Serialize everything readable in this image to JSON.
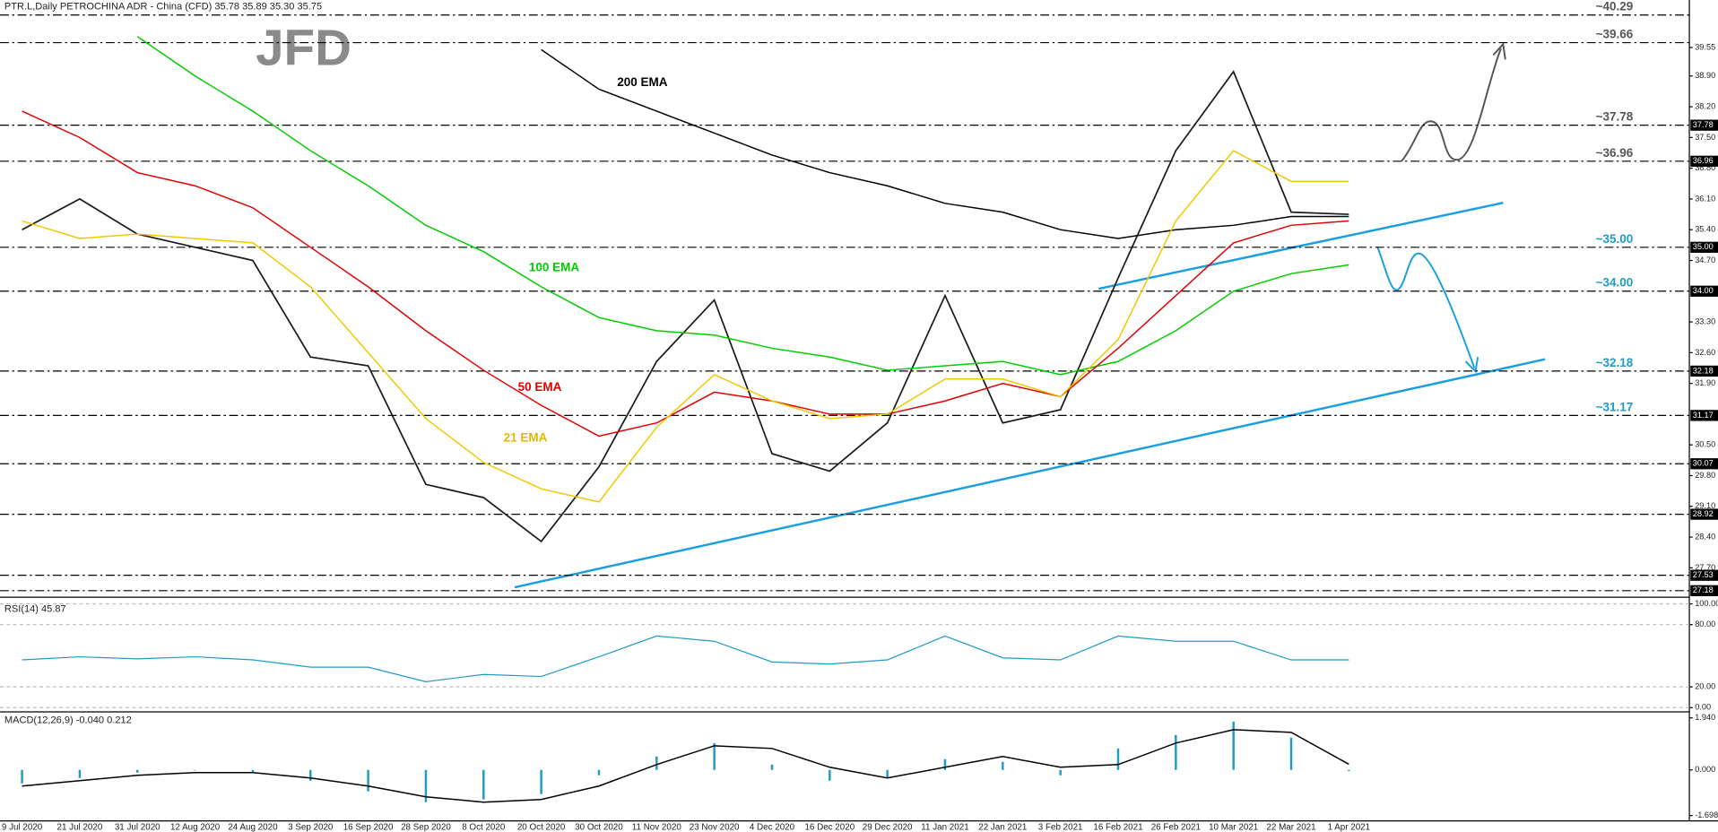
{
  "chart_data": [
    {
      "type": "line",
      "title": "PTR.L,Daily  PETROCHINA ADR - China (CFD)  35.78 35.89 35.30 35.75",
      "logo": "JFD",
      "categories": [
        "9 Jul 2020",
        "21 Jul 2020",
        "31 Jul 2020",
        "12 Aug 2020",
        "24 Aug 2020",
        "3 Sep 2020",
        "16 Sep 2020",
        "28 Sep 2020",
        "8 Oct 2020",
        "20 Oct 2020",
        "30 Oct 2020",
        "11 Nov 2020",
        "23 Nov 2020",
        "4 Dec 2020",
        "16 Dec 2020",
        "29 Dec 2020",
        "11 Jan 2021",
        "22 Jan 2021",
        "3 Feb 2021",
        "16 Feb 2021",
        "26 Feb 2021",
        "10 Mar 2021",
        "22 Mar 2021",
        "1 Apr 2021"
      ],
      "close": {
        "color": "#1a1a1a",
        "values": [
          35.4,
          36.1,
          35.3,
          35.0,
          34.7,
          32.5,
          32.3,
          29.6,
          29.3,
          28.3,
          30.0,
          32.4,
          33.8,
          30.3,
          29.9,
          31.0,
          33.9,
          31.0,
          31.3,
          34.3,
          37.2,
          39.0,
          35.8,
          35.75
        ]
      },
      "series": [
        {
          "name": "200 EMA",
          "color": "#000000",
          "values": [
            null,
            null,
            null,
            null,
            null,
            null,
            null,
            null,
            null,
            39.5,
            38.6,
            38.1,
            37.6,
            37.1,
            36.7,
            36.4,
            36.0,
            35.8,
            35.4,
            35.2,
            35.4,
            35.5,
            35.7,
            35.7
          ]
        },
        {
          "name": "100 EMA",
          "color": "#00cc00",
          "values": [
            null,
            null,
            39.8,
            38.9,
            38.1,
            37.2,
            36.4,
            35.5,
            34.9,
            34.1,
            33.4,
            33.1,
            33.0,
            32.7,
            32.5,
            32.2,
            32.3,
            32.4,
            32.1,
            32.4,
            33.1,
            34.0,
            34.4,
            34.6
          ]
        },
        {
          "name": "50 EMA",
          "color": "#e00000",
          "values": [
            38.1,
            37.5,
            36.7,
            36.4,
            35.9,
            35.0,
            34.1,
            33.1,
            32.2,
            31.4,
            30.7,
            31.0,
            31.7,
            31.5,
            31.2,
            31.2,
            31.5,
            31.9,
            31.6,
            32.7,
            33.9,
            35.1,
            35.5,
            35.6
          ]
        },
        {
          "name": "21 EMA",
          "color": "#f0c800",
          "values": [
            35.6,
            35.2,
            35.3,
            35.2,
            35.1,
            34.1,
            32.6,
            31.1,
            30.1,
            29.5,
            29.2,
            30.9,
            32.1,
            31.5,
            31.1,
            31.2,
            32.0,
            32.0,
            31.6,
            32.9,
            35.6,
            37.2,
            36.5,
            36.5
          ]
        }
      ],
      "ylim": [
        27.08,
        40.63
      ],
      "yticks": [
        39.55,
        {
          "value": 38.9,
          "label": "38.90"
        },
        {
          "value": 38.2,
          "label": "38.20"
        },
        {
          "value": 37.5,
          "label": "37.50"
        },
        {
          "value": 36.8,
          "label": "36.80"
        },
        {
          "value": 36.1,
          "label": "36.10"
        },
        {
          "value": 35.4,
          "label": "35.40"
        },
        {
          "value": 34.7,
          "label": "34.70"
        },
        {
          "value": 33.3,
          "label": "33.30"
        },
        {
          "value": 32.6,
          "label": "32.60"
        },
        {
          "value": 31.9,
          "label": "31.90"
        },
        {
          "value": 30.5,
          "label": "30.50"
        },
        {
          "value": 29.8,
          "label": "29.80"
        },
        {
          "value": 29.1,
          "label": "29.10"
        },
        {
          "value": 28.4,
          "label": "28.40"
        },
        {
          "value": 27.7,
          "label": "27.70"
        }
      ],
      "levels": [
        {
          "value": 40.29,
          "label": "~40.29",
          "color": "#555555"
        },
        {
          "value": 39.66,
          "label": "~39.66",
          "color": "#555555"
        },
        {
          "value": 37.78,
          "label": "~37.78",
          "box": "37.78",
          "color": "#555555"
        },
        {
          "value": 36.96,
          "label": "~36.96",
          "box": "36.96",
          "color": "#555555"
        },
        {
          "value": 35,
          "label": "~35.00",
          "box": "35.00",
          "color": "#1f9bc4"
        },
        {
          "value": 34,
          "label": "~34.00",
          "box": "34.00",
          "color": "#1f9bc4"
        },
        {
          "value": 32.18,
          "label": "~32.18",
          "box": "32.18",
          "color": "#1f9bc4"
        },
        {
          "value": 31.17,
          "label": "~31.17",
          "box": "31.17",
          "color": "#1f9bc4"
        },
        {
          "value": 30.07,
          "box": "30.07"
        },
        {
          "value": 28.92,
          "box": "28.92"
        },
        {
          "value": 27.53,
          "box": "27.53"
        },
        {
          "value": 27.18,
          "box": "27.18"
        }
      ]
    },
    {
      "type": "line",
      "title": "RSI(14) 45.87",
      "color": "#1f9bc4",
      "values": [
        46,
        49,
        47,
        49,
        46,
        39,
        39,
        25,
        32,
        30,
        49,
        69,
        64,
        44,
        42,
        46,
        69,
        48,
        46,
        69,
        64,
        64,
        46,
        46
      ],
      "ylim": [
        -3,
        100
      ],
      "yticks": [
        {
          "value": 100,
          "label": "100.00"
        },
        {
          "value": 80,
          "label": "80.00"
        },
        {
          "value": 20,
          "label": "20.00"
        },
        {
          "value": 0,
          "label": "0.00"
        }
      ]
    },
    {
      "type": "combo",
      "title": "MACD(12,26,9) -0.040 0.212",
      "histogram": {
        "color": "#1f9bc4",
        "values": [
          -0.5,
          -0.3,
          -0.1,
          0,
          -0.1,
          -0.4,
          -0.8,
          -1.2,
          -1.1,
          -0.9,
          -0.2,
          0.5,
          1.0,
          0.2,
          -0.4,
          -0.3,
          0.4,
          0.3,
          -0.2,
          0.8,
          1.3,
          1.8,
          1.2,
          -0.04
        ]
      },
      "signal": {
        "color": "#000000",
        "values": [
          -0.6,
          -0.4,
          -0.2,
          -0.1,
          -0.1,
          -0.3,
          -0.6,
          -1.0,
          -1.2,
          -1.1,
          -0.6,
          0.2,
          0.9,
          0.8,
          0.1,
          -0.3,
          0.1,
          0.5,
          0.1,
          0.2,
          1.0,
          1.5,
          1.4,
          0.212
        ]
      },
      "ylim": [
        -1.9,
        2.0
      ],
      "yticks": [
        {
          "value": 1.94,
          "label": "1.940"
        },
        {
          "value": 0,
          "label": "0.000"
        },
        {
          "value": -1.698,
          "label": "-1.698"
        }
      ]
    }
  ]
}
